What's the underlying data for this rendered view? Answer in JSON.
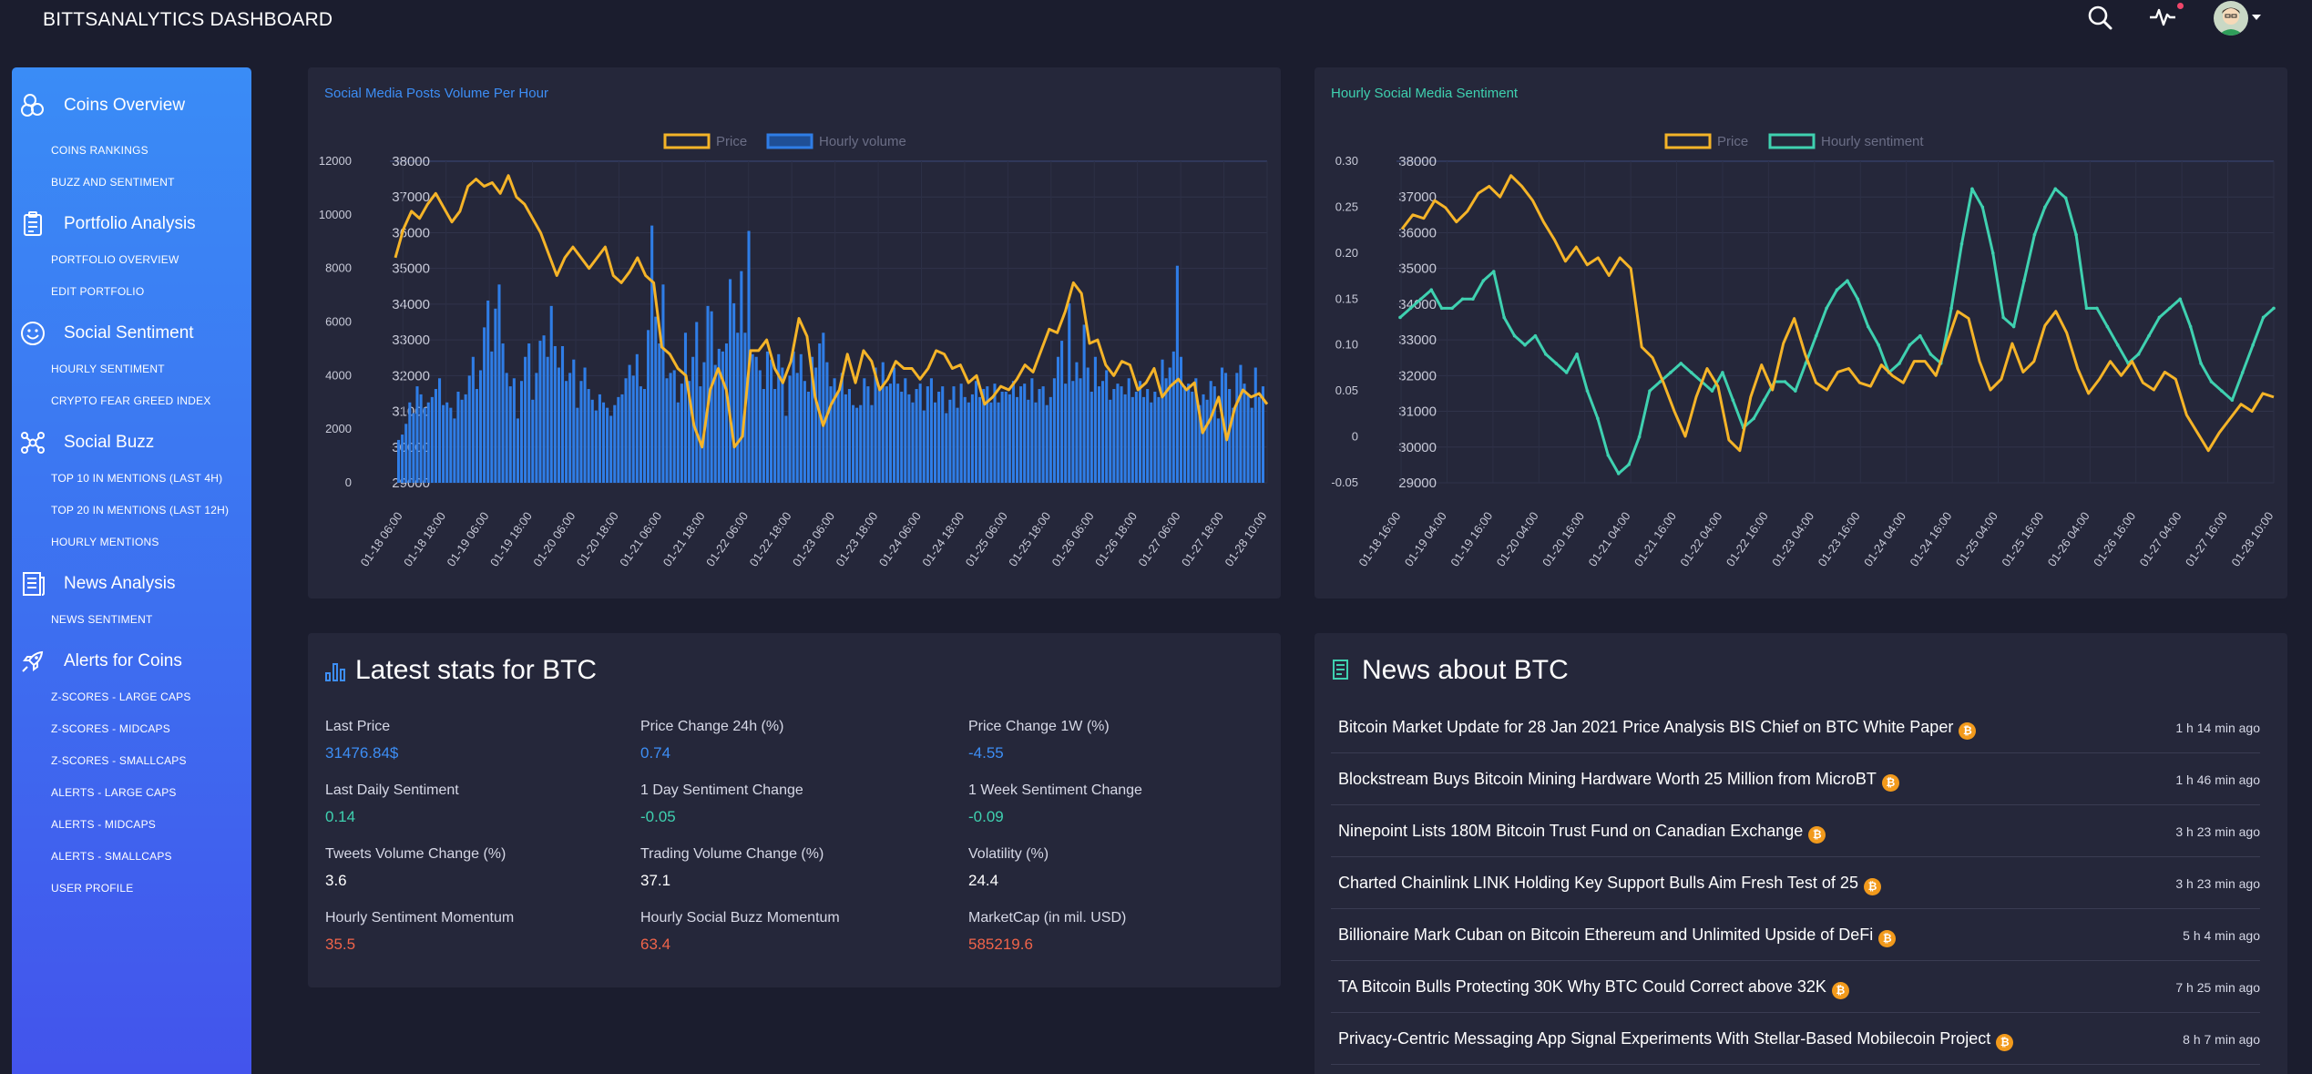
{
  "app": {
    "title": "BITTSANALYTICS DASHBOARD"
  },
  "topbar": {
    "icons": [
      "search-icon",
      "activity-icon",
      "avatar"
    ]
  },
  "sidebar": {
    "sections": [
      {
        "label": "Coins Overview",
        "icon": "coins-icon",
        "items": [
          "COINS RANKINGS",
          "BUZZ AND SENTIMENT"
        ]
      },
      {
        "label": "Portfolio Analysis",
        "icon": "clipboard-icon",
        "items": [
          "PORTFOLIO OVERVIEW",
          "EDIT PORTFOLIO"
        ]
      },
      {
        "label": "Social Sentiment",
        "icon": "smiley-icon",
        "items": [
          "HOURLY SENTIMENT",
          "CRYPTO FEAR GREED INDEX"
        ]
      },
      {
        "label": "Social Buzz",
        "icon": "network-icon",
        "items": [
          "TOP 10 IN MENTIONS (LAST 4H)",
          "TOP 20 IN MENTIONS (LAST 12H)",
          "HOURLY MENTIONS"
        ]
      },
      {
        "label": "News Analysis",
        "icon": "newspaper-icon",
        "items": [
          "NEWS SENTIMENT"
        ]
      },
      {
        "label": "Alerts for Coins",
        "icon": "rocket-icon",
        "items": [
          "Z-SCORES - LARGE CAPS",
          "Z-SCORES - MIDCAPS",
          "Z-SCORES - SMALLCAPS",
          "ALERTS - LARGE CAPS",
          "ALERTS - MIDCAPS",
          "ALERTS - SMALLCAPS",
          "USER PROFILE"
        ]
      }
    ]
  },
  "colors": {
    "price": "#f5b428",
    "volume": "#2f7de6",
    "sentiment": "#3fd1b0",
    "positive": "#3fd1b0",
    "negative": "#f0644a",
    "link": "#3d8ef5"
  },
  "chart_data": [
    {
      "type": "bar",
      "title": "Social Media Posts Volume Per Hour",
      "legend": [
        "Price",
        "Hourly volume"
      ],
      "legend_position": "top",
      "x_ticks": [
        "01-18 06:00",
        "01-18 18:00",
        "01-19 06:00",
        "01-19 18:00",
        "01-20 06:00",
        "01-20 18:00",
        "01-21 06:00",
        "01-21 18:00",
        "01-22 06:00",
        "01-22 18:00",
        "01-23 06:00",
        "01-23 18:00",
        "01-24 06:00",
        "01-24 18:00",
        "01-25 06:00",
        "01-25 18:00",
        "01-26 06:00",
        "01-26 18:00",
        "01-27 06:00",
        "01-27 18:00",
        "01-28 10:00"
      ],
      "y_left_ticks": [
        "12000",
        "10000",
        "8000",
        "6000",
        "4000",
        "2000",
        "0"
      ],
      "y_right_ticks": [
        "38000",
        "37000",
        "36000",
        "35000",
        "34000",
        "33000",
        "32000",
        "31000",
        "30000",
        "29000"
      ],
      "y_left_range": [
        0,
        12000
      ],
      "y_right_range": [
        29000,
        38000
      ],
      "grid": true,
      "series": [
        {
          "name": "Price",
          "type": "line",
          "values": [
            35300,
            36100,
            36600,
            36400,
            36800,
            37100,
            36700,
            36300,
            36600,
            37300,
            37500,
            37300,
            37400,
            37100,
            37600,
            37000,
            36800,
            36400,
            36000,
            35400,
            34800,
            35300,
            35600,
            35300,
            35000,
            35300,
            35600,
            34800,
            34600,
            34900,
            35300,
            34800,
            34600,
            32800,
            32600,
            32200,
            32000,
            30600,
            30000,
            31600,
            32200,
            31600,
            30000,
            30300,
            32700,
            32700,
            33000,
            32200,
            31800,
            32400,
            33600,
            33100,
            31400,
            30600,
            31200,
            31600,
            32600,
            31800,
            32700,
            32400,
            31600,
            31900,
            32400,
            32200,
            32200,
            31900,
            32200,
            32700,
            32600,
            32200,
            32300,
            31800,
            32000,
            31200,
            31400,
            31700,
            31600,
            31900,
            32300,
            32100,
            32700,
            33300,
            33200,
            33800,
            34600,
            34300,
            32900,
            33000,
            32300,
            32000,
            32400,
            32300,
            31600,
            31800,
            32200,
            31400,
            31700,
            31900,
            31600,
            31800,
            30400,
            30800,
            31400,
            30200,
            31100,
            31600,
            31400,
            31500,
            31200
          ]
        },
        {
          "name": "Hourly volume",
          "type": "bar",
          "values": [
            1600,
            1800,
            2200,
            3000,
            2600,
            3600,
            3300,
            2800,
            3000,
            3200,
            3500,
            3900,
            2900,
            3000,
            2800,
            2400,
            3400,
            3100,
            3300,
            4000,
            4700,
            3500,
            4200,
            5800,
            6800,
            4900,
            6500,
            7400,
            5200,
            4100,
            3600,
            3900,
            2400,
            3800,
            4700,
            5200,
            3100,
            4100,
            5300,
            5500,
            4700,
            6600,
            5100,
            4300,
            5100,
            3800,
            4100,
            4600,
            2800,
            3800,
            4300,
            3500,
            3100,
            2700,
            3300,
            3000,
            2800,
            2500,
            2900,
            3200,
            3300,
            3900,
            4400,
            4000,
            4800,
            3600,
            3500,
            5700,
            9600,
            6200,
            5200,
            7400,
            3900,
            4100,
            4200,
            3000,
            3700,
            5600,
            3800,
            4700,
            6000,
            3600,
            4500,
            6600,
            6400,
            4400,
            5000,
            4900,
            5200,
            7600,
            6700,
            5600,
            7900,
            5600,
            9400,
            4800,
            4700,
            4200,
            3500,
            4900,
            4600,
            3500,
            4800,
            4300,
            2500,
            4000,
            4900,
            4100,
            4800,
            3800,
            3400,
            4700,
            4300,
            5200,
            5600,
            4500,
            3600,
            3900,
            3400,
            4100,
            3300,
            3500,
            2900,
            2800,
            2900,
            3900,
            3600,
            2900,
            4300,
            3600,
            4500,
            3600,
            3700,
            4300,
            3700,
            3400,
            3900,
            3300,
            3000,
            3500,
            3700,
            2700,
            3600,
            3900,
            3000,
            3400,
            3600,
            2600,
            3100,
            3600,
            2800,
            3700,
            3200,
            3000,
            3300,
            3800,
            3200,
            3500,
            3600,
            3000,
            3700,
            3000,
            3400,
            3400,
            3300,
            3800,
            3200,
            3600,
            3700,
            3100,
            3900,
            3000,
            3500,
            3600,
            2900,
            3200,
            3900,
            4700,
            5300,
            3700,
            6700,
            3800,
            4500,
            3900,
            5900,
            4300,
            3400,
            4700,
            3600,
            3800,
            4200,
            3100,
            3500,
            3700,
            3600,
            3300,
            3900,
            3200,
            3400,
            3800,
            3200,
            3500,
            3000,
            3400,
            3200,
            4600,
            3900,
            4300,
            4900,
            8100,
            4700,
            3600,
            3700,
            3400,
            3900,
            2900,
            3300,
            3100,
            3800,
            3600,
            2400,
            4300,
            4100,
            3500,
            2800,
            4100,
            4400,
            3700,
            3300,
            2800,
            4300,
            3200,
            3600
          ]
        }
      ]
    },
    {
      "type": "line",
      "title": "Hourly Social Media Sentiment",
      "legend": [
        "Price",
        "Hourly sentiment"
      ],
      "legend_position": "top",
      "x_ticks": [
        "01-18 16:00",
        "01-19 04:00",
        "01-19 16:00",
        "01-20 04:00",
        "01-20 16:00",
        "01-21 04:00",
        "01-21 16:00",
        "01-22 04:00",
        "01-22 16:00",
        "01-23 04:00",
        "01-23 16:00",
        "01-24 04:00",
        "01-24 16:00",
        "01-25 04:00",
        "01-25 16:00",
        "01-26 04:00",
        "01-26 16:00",
        "01-27 04:00",
        "01-27 16:00",
        "01-28 10:00"
      ],
      "y_left_ticks": [
        "0.30",
        "0.25",
        "0.20",
        "0.15",
        "0.10",
        "0.05",
        "0",
        "-0.05"
      ],
      "y_right_ticks": [
        "38000",
        "37000",
        "36000",
        "35000",
        "34000",
        "33000",
        "32000",
        "31000",
        "30000",
        "29000"
      ],
      "y_left_range": [
        -0.05,
        0.3
      ],
      "y_right_range": [
        29000,
        38000
      ],
      "grid": true,
      "series": [
        {
          "name": "Price",
          "type": "line",
          "values": [
            36100,
            36500,
            36400,
            36900,
            36700,
            36300,
            36600,
            37100,
            37300,
            37000,
            37600,
            37300,
            36900,
            36300,
            35800,
            35200,
            35600,
            35100,
            35300,
            34800,
            35300,
            35000,
            32800,
            32500,
            31800,
            31000,
            30300,
            31400,
            32200,
            31700,
            30200,
            29900,
            31400,
            32300,
            31600,
            32900,
            33600,
            32600,
            31800,
            31600,
            32100,
            32200,
            31800,
            31700,
            32300,
            32000,
            31800,
            32400,
            32400,
            32000,
            32900,
            33800,
            33600,
            32400,
            31600,
            31900,
            32900,
            32100,
            32400,
            33400,
            33800,
            33200,
            32200,
            31500,
            31900,
            32400,
            32000,
            32400,
            31800,
            31600,
            32100,
            31900,
            30900,
            30400,
            29900,
            30400,
            30800,
            31200,
            31000,
            31500,
            31400
          ]
        },
        {
          "name": "Hourly sentiment",
          "type": "line",
          "values": [
            0.13,
            0.14,
            0.15,
            0.16,
            0.14,
            0.14,
            0.15,
            0.15,
            0.17,
            0.18,
            0.13,
            0.11,
            0.1,
            0.11,
            0.09,
            0.08,
            0.07,
            0.09,
            0.05,
            0.02,
            -0.02,
            -0.04,
            -0.03,
            0.0,
            0.05,
            0.06,
            0.07,
            0.08,
            0.07,
            0.06,
            0.05,
            0.07,
            0.04,
            0.01,
            0.02,
            0.04,
            0.06,
            0.06,
            0.05,
            0.08,
            0.11,
            0.14,
            0.16,
            0.17,
            0.15,
            0.12,
            0.1,
            0.07,
            0.08,
            0.1,
            0.11,
            0.09,
            0.08,
            0.14,
            0.21,
            0.27,
            0.25,
            0.2,
            0.13,
            0.12,
            0.17,
            0.22,
            0.25,
            0.27,
            0.26,
            0.22,
            0.14,
            0.14,
            0.12,
            0.1,
            0.08,
            0.09,
            0.11,
            0.13,
            0.14,
            0.15,
            0.12,
            0.08,
            0.06,
            0.05,
            0.04,
            0.07,
            0.1,
            0.13,
            0.14
          ]
        }
      ]
    }
  ],
  "stats": {
    "title": "Latest stats for BTC",
    "items": [
      {
        "label": "Last Price",
        "value": "31476.84$",
        "tone": "link"
      },
      {
        "label": "Price Change 24h (%)",
        "value": "0.74",
        "tone": "link"
      },
      {
        "label": "Price Change 1W (%)",
        "value": "-4.55",
        "tone": "link"
      },
      {
        "label": "Last Daily Sentiment",
        "value": "0.14",
        "tone": "positive"
      },
      {
        "label": "1 Day Sentiment Change",
        "value": "-0.05",
        "tone": "positive"
      },
      {
        "label": "1 Week Sentiment Change",
        "value": "-0.09",
        "tone": "positive"
      },
      {
        "label": "Tweets Volume Change (%)",
        "value": "3.6",
        "tone": "plain"
      },
      {
        "label": "Trading Volume Change (%)",
        "value": "37.1",
        "tone": "plain"
      },
      {
        "label": "Volatility (%)",
        "value": "24.4",
        "tone": "plain"
      },
      {
        "label": "Hourly Sentiment Momentum",
        "value": "35.5",
        "tone": "negative"
      },
      {
        "label": "Hourly Social Buzz Momentum",
        "value": "63.4",
        "tone": "negative"
      },
      {
        "label": "MarketCap (in mil. USD)",
        "value": "585219.6",
        "tone": "negative"
      }
    ]
  },
  "news": {
    "title": "News about BTC",
    "items": [
      {
        "title": "Bitcoin Market Update for 28 Jan 2021 Price Analysis BIS Chief on BTC White Paper",
        "time": "1 h 14 min ago"
      },
      {
        "title": "Blockstream Buys Bitcoin Mining Hardware Worth 25 Million from MicroBT",
        "time": "1 h 46 min ago"
      },
      {
        "title": "Ninepoint Lists 180M Bitcoin Trust Fund on Canadian Exchange",
        "time": "3 h 23 min ago"
      },
      {
        "title": "Charted Chainlink LINK Holding Key Support Bulls Aim Fresh Test of 25",
        "time": "3 h 23 min ago"
      },
      {
        "title": "Billionaire Mark Cuban on Bitcoin Ethereum and Unlimited Upside of DeFi",
        "time": "5 h 4 min ago"
      },
      {
        "title": "TA Bitcoin Bulls Protecting 30K Why BTC Could Correct above 32K",
        "time": "7 h 25 min ago"
      },
      {
        "title": "Privacy-Centric Messaging App Signal Experiments With Stellar-Based Mobilecoin Project",
        "time": "8 h 7 min ago"
      }
    ]
  }
}
